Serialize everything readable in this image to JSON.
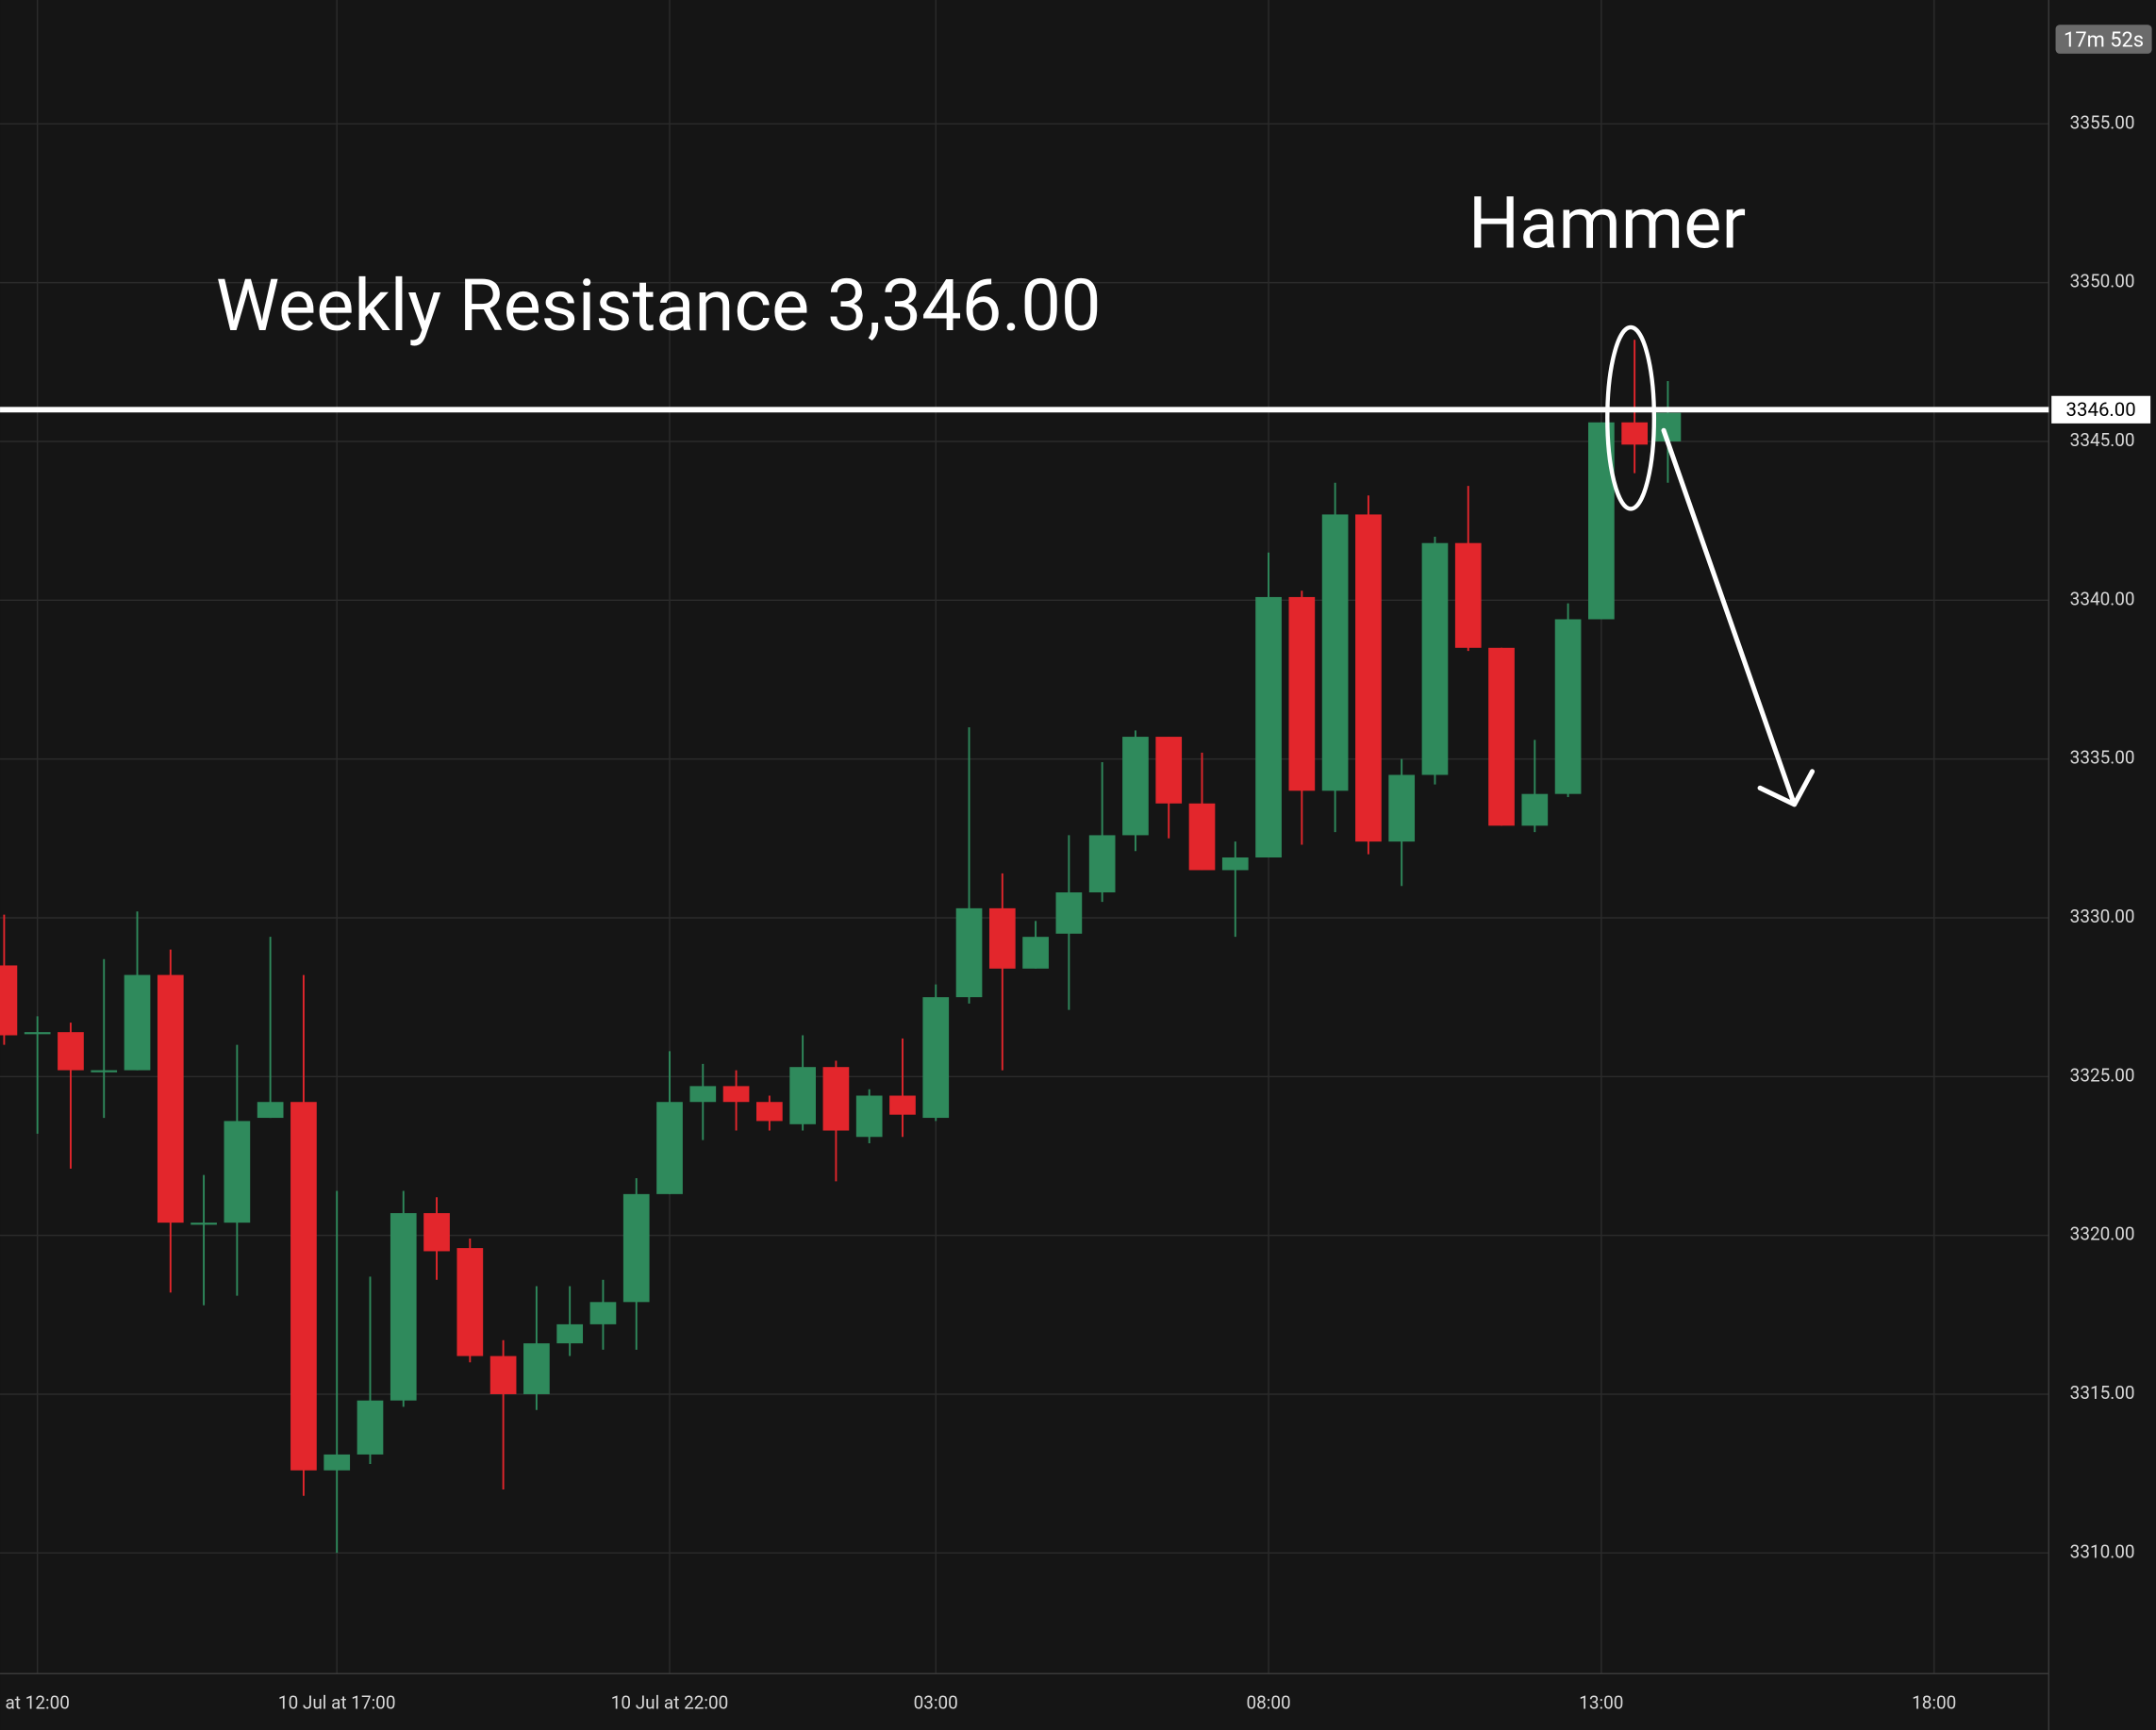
{
  "chart_data": {
    "type": "candlestick",
    "categories": [
      null,
      "at 12:00",
      null,
      null,
      null,
      null,
      null,
      null,
      null,
      null,
      "10 Jul at 17:00",
      null,
      null,
      null,
      null,
      null,
      null,
      null,
      null,
      null,
      "10 Jul at 22:00",
      null,
      null,
      null,
      null,
      null,
      null,
      null,
      "03:00",
      null,
      null,
      null,
      null,
      null,
      null,
      null,
      null,
      null,
      "08:00",
      null,
      null,
      null,
      null,
      null,
      null,
      null,
      null,
      null,
      "13:00",
      null,
      null,
      null,
      null,
      null,
      null,
      null,
      null,
      null,
      "18:00"
    ],
    "open": [
      3328.5,
      3326.4,
      3326.4,
      3325.2,
      3325.2,
      3328.2,
      3320.4,
      3320.4,
      3323.7,
      3324.2,
      3312.6,
      3313.1,
      3314.8,
      3320.7,
      3319.6,
      3316.2,
      3315.0,
      3316.6,
      3317.2,
      3317.9,
      3321.3,
      3324.2,
      3324.7,
      3324.2,
      3323.5,
      3325.3,
      3323.1,
      3324.4,
      3323.7,
      3327.5,
      3330.3,
      3328.4,
      3329.5,
      3330.8,
      3332.6,
      3335.7,
      3333.6,
      3331.5,
      3331.9,
      3340.1,
      3334.0,
      3342.7,
      3332.4,
      3334.5,
      3341.8,
      3338.5,
      3332.9,
      3333.9,
      3339.4,
      3345.6,
      3345.0,
      null,
      null,
      null,
      null,
      null,
      null,
      null,
      null
    ],
    "high": [
      3330.1,
      3326.9,
      3326.7,
      3328.7,
      3330.2,
      3329.0,
      3321.9,
      3326.0,
      3329.4,
      3328.2,
      3321.4,
      3318.7,
      3321.4,
      3321.2,
      3319.9,
      3316.7,
      3318.4,
      3318.4,
      3318.6,
      3321.8,
      3325.8,
      3325.4,
      3325.2,
      3324.4,
      3326.3,
      3325.5,
      3324.6,
      3326.2,
      3327.9,
      3336.0,
      3331.4,
      3329.9,
      3332.6,
      3334.9,
      3335.9,
      3335.7,
      3335.2,
      3332.4,
      3341.5,
      3340.3,
      3343.7,
      3343.3,
      3335.0,
      3342.0,
      3343.6,
      3338.5,
      3335.6,
      3339.9,
      3345.6,
      3348.2,
      3346.9,
      null,
      null,
      null,
      null,
      null,
      null,
      null,
      null
    ],
    "low": [
      3326.0,
      3323.2,
      3322.1,
      3323.7,
      3325.2,
      3318.2,
      3317.8,
      3318.1,
      3323.7,
      3311.8,
      3310.0,
      3312.8,
      3314.6,
      3318.6,
      3316.0,
      3312.0,
      3314.5,
      3316.2,
      3316.4,
      3316.4,
      3321.3,
      3323.0,
      3323.3,
      3323.3,
      3323.3,
      3321.7,
      3322.9,
      3323.1,
      3323.6,
      3327.3,
      3325.2,
      3328.4,
      3327.1,
      3330.5,
      3332.1,
      3332.5,
      3331.5,
      3329.4,
      3331.9,
      3332.3,
      3332.7,
      3332.0,
      3331.0,
      3334.2,
      3338.4,
      3332.9,
      3332.7,
      3333.8,
      3339.4,
      3344.0,
      3343.7,
      null,
      null,
      null,
      null,
      null,
      null,
      null,
      null
    ],
    "close": [
      3326.3,
      3326.4,
      3325.2,
      3325.2,
      3328.2,
      3320.4,
      3320.4,
      3323.6,
      3324.2,
      3312.6,
      3313.1,
      3314.8,
      3320.7,
      3319.5,
      3316.2,
      3315.0,
      3316.6,
      3317.2,
      3317.9,
      3321.3,
      3324.2,
      3324.7,
      3324.2,
      3323.6,
      3325.3,
      3323.3,
      3324.4,
      3323.8,
      3327.5,
      3330.3,
      3328.4,
      3329.4,
      3330.8,
      3332.6,
      3335.7,
      3333.6,
      3331.5,
      3331.9,
      3340.1,
      3334.0,
      3342.7,
      3332.4,
      3334.5,
      3341.8,
      3338.5,
      3332.9,
      3333.9,
      3339.4,
      3345.6,
      3344.9,
      3345.9,
      null,
      null,
      null,
      null,
      null,
      null,
      null,
      null
    ],
    "up_color": "#2f8a5c",
    "down_color": "#e3262c",
    "ylim": [
      3306.2,
      3358.9
    ],
    "yticks": [
      {
        "value": 3310,
        "label": "3310.00"
      },
      {
        "value": 3315,
        "label": "3315.00"
      },
      {
        "value": 3320,
        "label": "3320.00"
      },
      {
        "value": 3325,
        "label": "3325.00"
      },
      {
        "value": 3330,
        "label": "3330.00"
      },
      {
        "value": 3335,
        "label": "3335.00"
      },
      {
        "value": 3340,
        "label": "3340.00"
      },
      {
        "value": 3345,
        "label": "3345.00"
      },
      {
        "value": 3350,
        "label": "3350.00"
      },
      {
        "value": 3355,
        "label": "3355.00"
      }
    ],
    "grid": true,
    "resistance_line": {
      "value": 3346,
      "label": "3346.00",
      "color": "#ffffff"
    },
    "annotations": [
      "Weekly Resistance 3,346.00",
      "Hammer"
    ],
    "countdown": "17m 52s"
  }
}
